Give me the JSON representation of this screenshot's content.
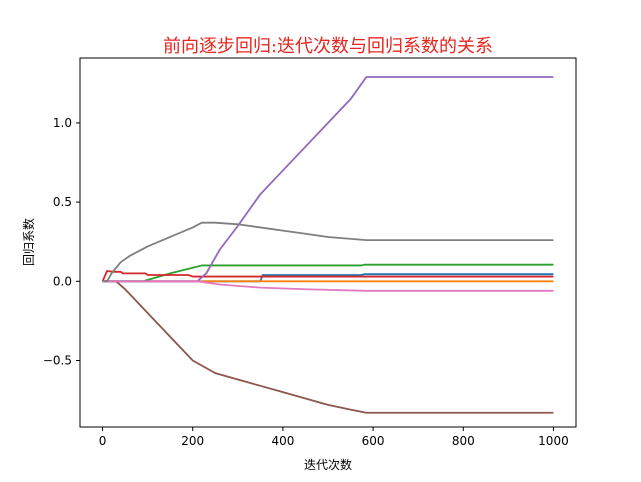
{
  "chart_data": {
    "type": "line",
    "title": "前向逐步回归:迭代次数与回归系数的关系",
    "xlabel": "迭代次数",
    "ylabel": "回归系数",
    "xlim": [
      -50,
      1050
    ],
    "ylim": [
      -0.92,
      1.41
    ],
    "xticks": [
      0,
      200,
      400,
      600,
      800,
      1000
    ],
    "yticks": [
      -0.5,
      0.0,
      0.5,
      1.0
    ],
    "xtick_labels": [
      "0",
      "200",
      "400",
      "600",
      "800",
      "1000"
    ],
    "ytick_labels": [
      "−0.5",
      "0.0",
      "0.5",
      "1.0"
    ],
    "grid": false,
    "legend": "none",
    "series": [
      {
        "color": "#1f77b4",
        "x": [
          0,
          350,
          355,
          575,
          580,
          1000
        ],
        "y": [
          0,
          0,
          0.04,
          0.04,
          0.045,
          0.045
        ]
      },
      {
        "color": "#ff7f0e",
        "x": [
          0,
          1000
        ],
        "y": [
          0,
          0
        ]
      },
      {
        "color": "#2ca02c",
        "x": [
          0,
          90,
          150,
          220,
          350,
          355,
          575,
          580,
          1000
        ],
        "y": [
          0,
          0,
          0.05,
          0.1,
          0.1,
          0.1,
          0.1,
          0.105,
          0.105
        ]
      },
      {
        "color": "#d62728",
        "x": [
          0,
          10,
          25,
          40,
          45,
          95,
          100,
          190,
          200,
          1000
        ],
        "y": [
          0,
          0.065,
          0.06,
          0.06,
          0.05,
          0.05,
          0.04,
          0.04,
          0.03,
          0.03
        ]
      },
      {
        "color": "#9467bd",
        "x": [
          0,
          210,
          230,
          260,
          300,
          350,
          400,
          450,
          500,
          550,
          585,
          1000
        ],
        "y": [
          0,
          0,
          0.05,
          0.2,
          0.35,
          0.55,
          0.7,
          0.85,
          1.0,
          1.15,
          1.29,
          1.29
        ]
      },
      {
        "color": "#8c564b",
        "x": [
          0,
          30,
          50,
          100,
          150,
          200,
          250,
          300,
          350,
          400,
          450,
          500,
          550,
          585,
          1000
        ],
        "y": [
          0,
          0,
          -0.05,
          -0.2,
          -0.35,
          -0.5,
          -0.58,
          -0.62,
          -0.66,
          -0.7,
          -0.74,
          -0.78,
          -0.81,
          -0.83,
          -0.83
        ]
      },
      {
        "color": "#e377c2",
        "x": [
          0,
          210,
          260,
          350,
          450,
          585,
          1000
        ],
        "y": [
          0,
          0,
          -0.02,
          -0.04,
          -0.05,
          -0.06,
          -0.06
        ]
      },
      {
        "color": "#7f7f7f",
        "x": [
          0,
          10,
          20,
          40,
          60,
          100,
          150,
          200,
          220,
          250,
          300,
          350,
          400,
          450,
          500,
          585,
          1000
        ],
        "y": [
          0,
          0,
          0.05,
          0.12,
          0.16,
          0.22,
          0.28,
          0.34,
          0.37,
          0.37,
          0.36,
          0.34,
          0.32,
          0.3,
          0.28,
          0.26,
          0.26
        ]
      }
    ]
  }
}
